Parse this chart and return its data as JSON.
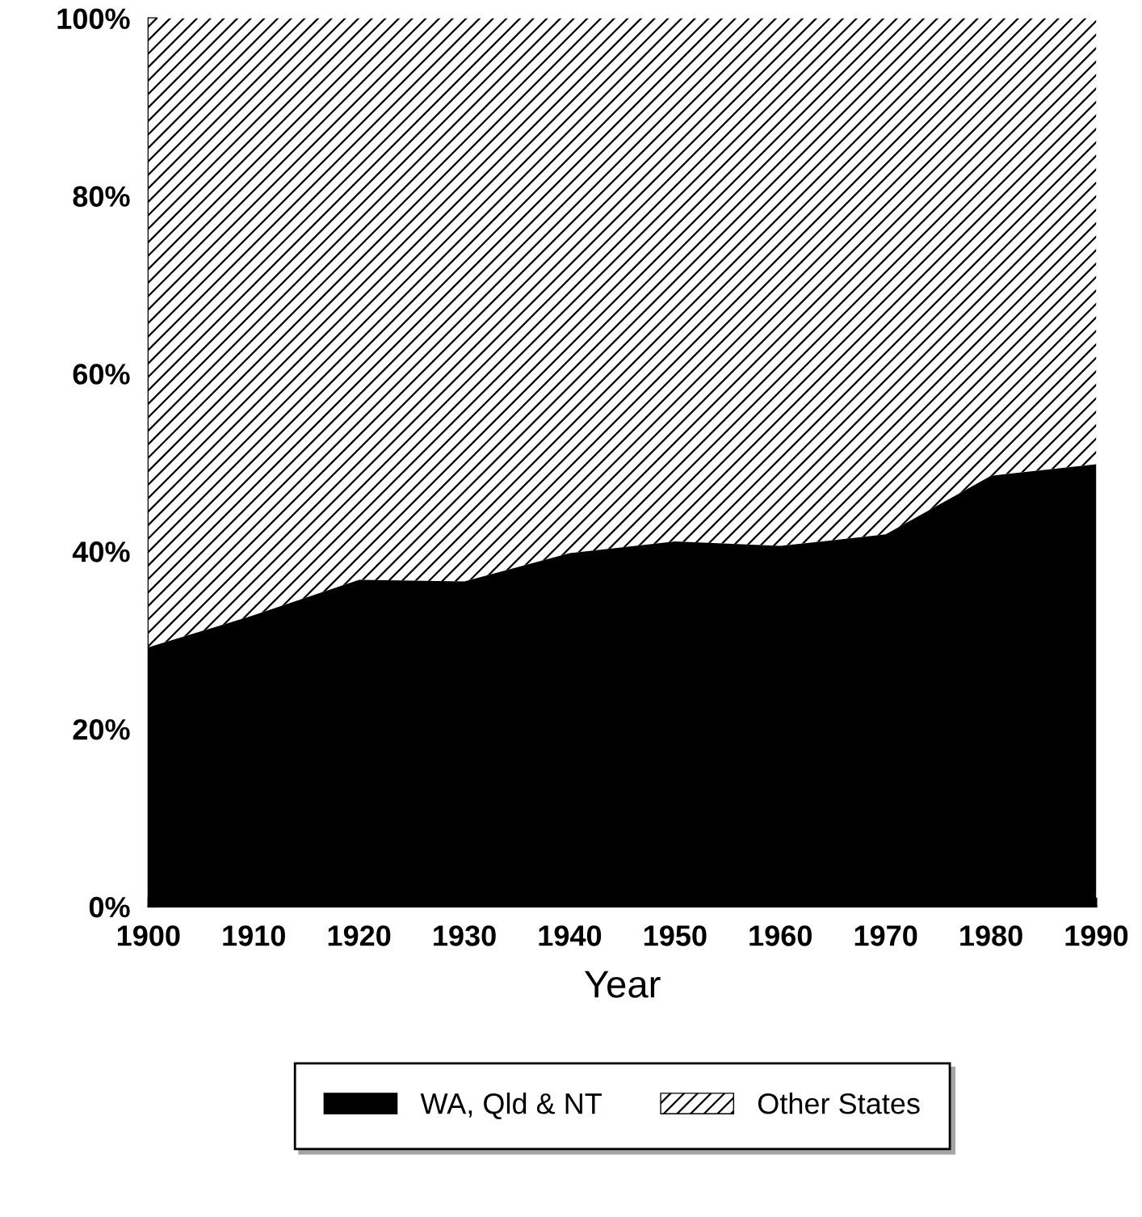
{
  "chart_data": {
    "type": "area",
    "stacked": true,
    "xlabel": "Year",
    "x": [
      1900,
      1910,
      1920,
      1930,
      1940,
      1950,
      1960,
      1970,
      1980,
      1990
    ],
    "xlim": [
      1900,
      1990
    ],
    "xticks": [
      1900,
      1910,
      1920,
      1930,
      1940,
      1950,
      1960,
      1970,
      1980,
      1990
    ],
    "ylim": [
      0,
      100
    ],
    "yticks": [
      {
        "value": 0,
        "label": "0%"
      },
      {
        "value": 20,
        "label": "20%"
      },
      {
        "value": 40,
        "label": "40%"
      },
      {
        "value": 60,
        "label": "60%"
      },
      {
        "value": 80,
        "label": "80%"
      },
      {
        "value": 100,
        "label": "100%"
      }
    ],
    "series": [
      {
        "name": "WA, Qld & NT",
        "color": "#000000",
        "values": [
          29.2,
          32.8,
          36.8,
          36.6,
          39.8,
          41.1,
          40.6,
          41.9,
          48.5,
          49.8
        ]
      },
      {
        "name": "Other States",
        "color": "#ffffff",
        "values": [
          70.8,
          67.2,
          63.2,
          63.4,
          60.2,
          58.9,
          59.4,
          58.1,
          51.5,
          50.2
        ]
      }
    ],
    "legend": "bottom",
    "grid": false
  }
}
